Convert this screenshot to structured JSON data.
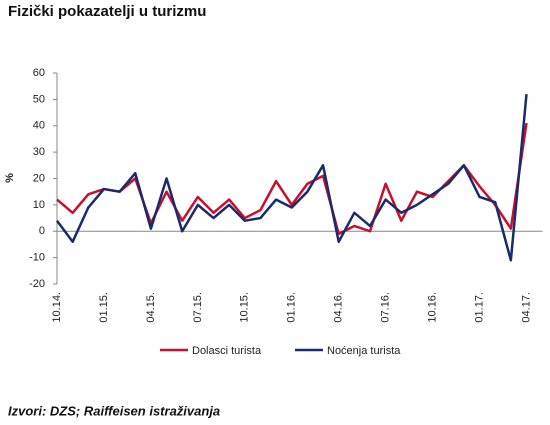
{
  "chart_data": {
    "type": "line",
    "title": "Fizički pokazatelji u turizmu",
    "y_label": "%",
    "source": "Izvori: DZS; Raiffeisen istraživanja",
    "categories": [
      "10.14.",
      null,
      null,
      "01.15.",
      null,
      null,
      "04.15.",
      null,
      null,
      "07.15.",
      null,
      null,
      "10.15.",
      null,
      null,
      "01.16.",
      null,
      null,
      "04.16.",
      null,
      null,
      "07.16.",
      null,
      null,
      "10.16.",
      null,
      null,
      "01.17.",
      null,
      null,
      "04.17."
    ],
    "series": [
      {
        "name": "Dolasci turista",
        "color": "#c8102e",
        "values": [
          12,
          7,
          14,
          16,
          15,
          20,
          3,
          15,
          4,
          13,
          7,
          12,
          5,
          8,
          19,
          10,
          18,
          21,
          -1,
          2,
          0,
          18,
          4,
          15,
          13,
          19,
          25,
          17,
          10,
          1,
          41
        ]
      },
      {
        "name": "Noćenja turista",
        "color": "#1a2a6c",
        "values": [
          4,
          -4,
          9,
          16,
          15,
          22,
          1,
          20,
          0,
          10,
          5,
          10,
          4,
          5,
          12,
          9,
          15,
          25,
          -4,
          7,
          2,
          12,
          7,
          10,
          14,
          18,
          25,
          13,
          11,
          -11,
          52
        ]
      }
    ],
    "ylim": [
      -20,
      60
    ],
    "yticks": [
      -20,
      -10,
      0,
      10,
      20,
      30,
      40,
      50,
      60
    ],
    "legend": "bottom"
  }
}
